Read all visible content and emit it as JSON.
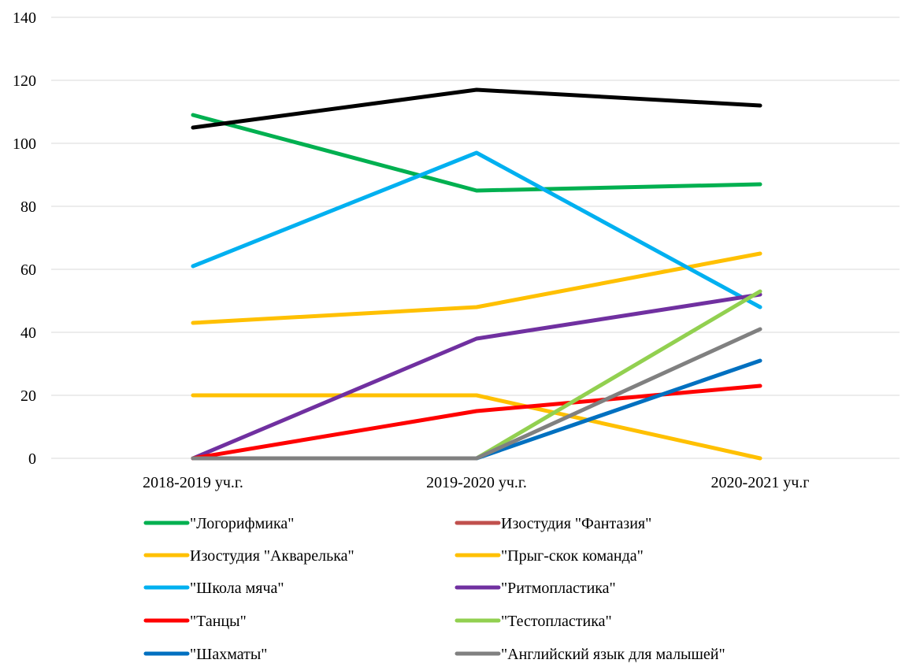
{
  "chart_data": {
    "type": "line",
    "title": "",
    "xlabel": "",
    "ylabel": "",
    "ylim": [
      0,
      140
    ],
    "yticks": [
      0,
      20,
      40,
      60,
      80,
      100,
      120,
      140
    ],
    "grid": "horizontal",
    "legend_position": "bottom",
    "categories": [
      "2018-2019 уч.г.",
      "2019-2020 уч.г.",
      "2020-2021 уч.г"
    ],
    "series": [
      {
        "name": "\"Логорифмика\"",
        "color": "#00b050",
        "values": [
          109,
          85,
          87
        ]
      },
      {
        "name": "Изостудия \"Фантазия\"",
        "color": "#c0504d",
        "values": [
          null,
          null,
          null
        ]
      },
      {
        "name": "Изостудия \"Акварелька\"",
        "color": "#ffc000",
        "values": [
          20,
          20,
          0
        ]
      },
      {
        "name": "\"Прыг-скок команда\"",
        "color": "#ffc000",
        "values": [
          43,
          48,
          65
        ]
      },
      {
        "name": "\"Школа мяча\"",
        "color": "#00b0f0",
        "values": [
          61,
          97,
          48
        ]
      },
      {
        "name": "\"Ритмопластика\"",
        "color": "#7030a0",
        "values": [
          0,
          38,
          52
        ]
      },
      {
        "name": "\"Танцы\"",
        "color": "#ff0000",
        "values": [
          0,
          15,
          23
        ]
      },
      {
        "name": "\"Тестопластика\"",
        "color": "#92d050",
        "values": [
          null,
          0,
          53
        ]
      },
      {
        "name": "\"Шахматы\"",
        "color": "#0070c0",
        "values": [
          null,
          0,
          31
        ]
      },
      {
        "name": "\"Английский язык для малышей\"",
        "color": "#808080",
        "values": [
          0,
          0,
          41
        ]
      },
      {
        "name": "",
        "color": "#000000",
        "values": [
          105,
          117,
          112
        ]
      }
    ]
  }
}
